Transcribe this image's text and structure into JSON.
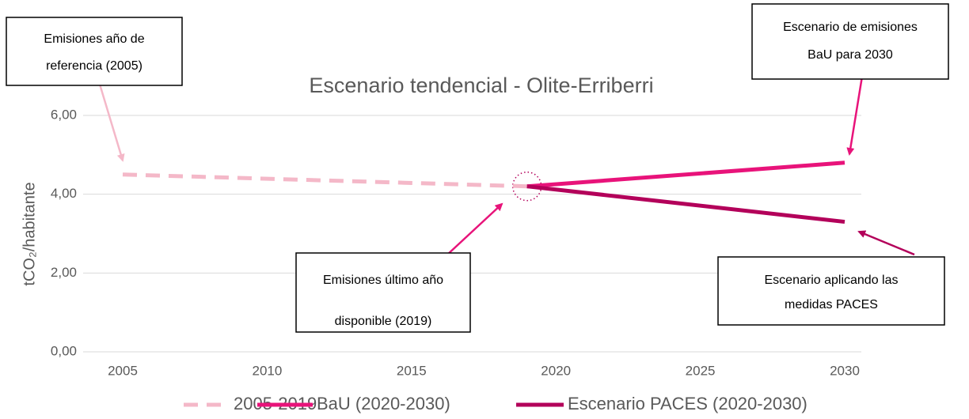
{
  "chart_data": {
    "type": "line",
    "title": "Escenario tendencial - Olite-Erriberri",
    "y_label": "tCO₂/habitante",
    "xlim": [
      2005,
      2030
    ],
    "xticks": [
      2005,
      2010,
      2015,
      2020,
      2025,
      2030
    ],
    "ylim": [
      0,
      6
    ],
    "yticks": [
      {
        "value": 0,
        "label": "0,00"
      },
      {
        "value": 2,
        "label": "2,00"
      },
      {
        "value": 4,
        "label": "4,00"
      },
      {
        "value": 6,
        "label": "6,00"
      }
    ],
    "grid": true,
    "legend": "bottom",
    "series": [
      {
        "name": "2005-2019",
        "color": "#f4b8c8",
        "dashed": true,
        "x": [
          2005,
          2019
        ],
        "values": [
          4.5,
          4.2
        ]
      },
      {
        "name": "BaU (2020-2030)",
        "color": "#e8137a",
        "dashed": false,
        "x": [
          2019,
          2030
        ],
        "values": [
          4.2,
          4.8
        ]
      },
      {
        "name": "Escenario PACES (2020-2030)",
        "color": "#b3005a",
        "dashed": false,
        "x": [
          2019,
          2030
        ],
        "values": [
          4.2,
          3.3
        ]
      }
    ],
    "annotations": [
      {
        "lines": [
          "Emisiones año de",
          "referencia (2005)"
        ]
      },
      {
        "lines": [
          "Escenario de emisiones",
          "BaU para 2030"
        ]
      },
      {
        "lines": [
          "Escenario aplicando las",
          "medidas PACES"
        ]
      },
      {
        "lines": [
          "Emisiones último año",
          "disponible (2019)"
        ]
      }
    ]
  }
}
